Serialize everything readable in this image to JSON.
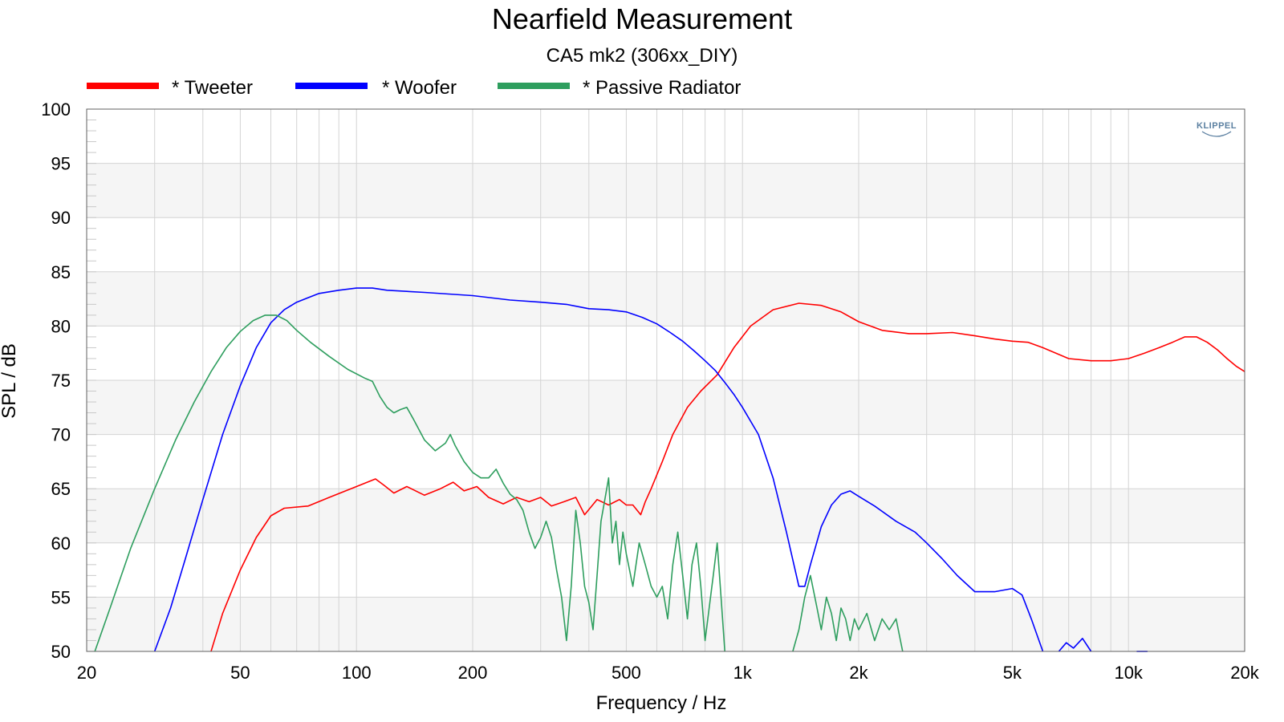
{
  "chart_data": {
    "type": "line",
    "title": "Nearfield Measurement",
    "subtitle": "CA5 mk2 (306xx_DIY)",
    "xlabel": "Frequency / Hz",
    "ylabel": "SPL / dB",
    "xscale": "log",
    "xlim": [
      20,
      20000
    ],
    "ylim": [
      50,
      100
    ],
    "legend_position": "top-left",
    "grid": true,
    "logo": "KLIPPEL",
    "x_ticks": [
      {
        "value": 20,
        "label": "20"
      },
      {
        "value": 50,
        "label": "50"
      },
      {
        "value": 100,
        "label": "100"
      },
      {
        "value": 200,
        "label": "200"
      },
      {
        "value": 500,
        "label": "500"
      },
      {
        "value": 1000,
        "label": "1k"
      },
      {
        "value": 2000,
        "label": "2k"
      },
      {
        "value": 5000,
        "label": "5k"
      },
      {
        "value": 10000,
        "label": "10k"
      },
      {
        "value": 20000,
        "label": "20k"
      }
    ],
    "y_ticks": [
      {
        "value": 50,
        "label": "50"
      },
      {
        "value": 55,
        "label": "55"
      },
      {
        "value": 60,
        "label": "60"
      },
      {
        "value": 65,
        "label": "65"
      },
      {
        "value": 70,
        "label": "70"
      },
      {
        "value": 75,
        "label": "75"
      },
      {
        "value": 80,
        "label": "80"
      },
      {
        "value": 85,
        "label": "85"
      },
      {
        "value": 90,
        "label": "90"
      },
      {
        "value": 95,
        "label": "95"
      },
      {
        "value": 100,
        "label": "100"
      }
    ],
    "series": [
      {
        "name": "* Tweeter",
        "color": "#ff0000",
        "points": [
          [
            42,
            50
          ],
          [
            45,
            53.5
          ],
          [
            50,
            57.5
          ],
          [
            55,
            60.5
          ],
          [
            60,
            62.5
          ],
          [
            65,
            63.2
          ],
          [
            75,
            63.4
          ],
          [
            85,
            64.2
          ],
          [
            100,
            65.2
          ],
          [
            112,
            65.9
          ],
          [
            118,
            65.3
          ],
          [
            125,
            64.6
          ],
          [
            135,
            65.2
          ],
          [
            150,
            64.4
          ],
          [
            165,
            65
          ],
          [
            178,
            65.6
          ],
          [
            190,
            64.8
          ],
          [
            205,
            65.2
          ],
          [
            220,
            64.2
          ],
          [
            240,
            63.6
          ],
          [
            260,
            64.2
          ],
          [
            280,
            63.8
          ],
          [
            300,
            64.2
          ],
          [
            320,
            63.4
          ],
          [
            345,
            63.8
          ],
          [
            370,
            64.2
          ],
          [
            390,
            62.6
          ],
          [
            420,
            64
          ],
          [
            450,
            63.5
          ],
          [
            480,
            64
          ],
          [
            500,
            63.5
          ],
          [
            520,
            63.5
          ],
          [
            545,
            62.6
          ],
          [
            560,
            63.8
          ],
          [
            580,
            65
          ],
          [
            620,
            67.5
          ],
          [
            660,
            70
          ],
          [
            720,
            72.5
          ],
          [
            780,
            74
          ],
          [
            860,
            75.5
          ],
          [
            950,
            78
          ],
          [
            1050,
            80
          ],
          [
            1200,
            81.5
          ],
          [
            1400,
            82.1
          ],
          [
            1600,
            81.9
          ],
          [
            1800,
            81.3
          ],
          [
            2000,
            80.4
          ],
          [
            2300,
            79.6
          ],
          [
            2700,
            79.3
          ],
          [
            3000,
            79.3
          ],
          [
            3500,
            79.4
          ],
          [
            4000,
            79.1
          ],
          [
            4500,
            78.8
          ],
          [
            5000,
            78.6
          ],
          [
            5500,
            78.5
          ],
          [
            6000,
            78
          ],
          [
            7000,
            77
          ],
          [
            8000,
            76.8
          ],
          [
            9000,
            76.8
          ],
          [
            10000,
            77
          ],
          [
            11000,
            77.5
          ],
          [
            12000,
            78
          ],
          [
            13000,
            78.5
          ],
          [
            14000,
            79
          ],
          [
            15000,
            79
          ],
          [
            16000,
            78.5
          ],
          [
            17000,
            77.8
          ],
          [
            18000,
            77
          ],
          [
            19000,
            76.3
          ],
          [
            20000,
            75.8
          ]
        ]
      },
      {
        "name": "* Woofer",
        "color": "#0000ff",
        "points": [
          [
            30,
            50
          ],
          [
            33,
            54
          ],
          [
            36,
            58.5
          ],
          [
            40,
            64
          ],
          [
            45,
            70
          ],
          [
            50,
            74.5
          ],
          [
            55,
            78
          ],
          [
            60,
            80.3
          ],
          [
            65,
            81.5
          ],
          [
            70,
            82.2
          ],
          [
            80,
            83
          ],
          [
            90,
            83.3
          ],
          [
            100,
            83.5
          ],
          [
            110,
            83.5
          ],
          [
            120,
            83.3
          ],
          [
            150,
            83.1
          ],
          [
            200,
            82.8
          ],
          [
            250,
            82.4
          ],
          [
            300,
            82.2
          ],
          [
            350,
            82
          ],
          [
            400,
            81.6
          ],
          [
            450,
            81.5
          ],
          [
            500,
            81.3
          ],
          [
            550,
            80.8
          ],
          [
            600,
            80.2
          ],
          [
            650,
            79.4
          ],
          [
            700,
            78.6
          ],
          [
            750,
            77.7
          ],
          [
            800,
            76.8
          ],
          [
            850,
            75.9
          ],
          [
            900,
            74.8
          ],
          [
            950,
            73.7
          ],
          [
            1000,
            72.5
          ],
          [
            1100,
            70
          ],
          [
            1200,
            66
          ],
          [
            1300,
            61
          ],
          [
            1400,
            56
          ],
          [
            1450,
            56
          ],
          [
            1500,
            58
          ],
          [
            1600,
            61.5
          ],
          [
            1700,
            63.5
          ],
          [
            1800,
            64.5
          ],
          [
            1900,
            64.8
          ],
          [
            2000,
            64.3
          ],
          [
            2200,
            63.4
          ],
          [
            2500,
            62
          ],
          [
            2800,
            61
          ],
          [
            3000,
            60
          ],
          [
            3300,
            58.5
          ],
          [
            3600,
            57
          ],
          [
            4000,
            55.5
          ],
          [
            4500,
            55.5
          ],
          [
            5000,
            55.8
          ],
          [
            5300,
            55.2
          ],
          [
            5600,
            53
          ],
          [
            6000,
            50
          ]
        ]
      },
      {
        "name": "* Woofer",
        "color": "#0000ff",
        "points": [
          [
            6600,
            50
          ],
          [
            6900,
            50.8
          ],
          [
            7200,
            50.3
          ],
          [
            7600,
            51.2
          ],
          [
            8000,
            50
          ]
        ]
      },
      {
        "name": "* Woofer",
        "color": "#0000ff",
        "points": [
          [
            10500,
            50
          ],
          [
            11200,
            50
          ]
        ]
      },
      {
        "name": "* Passive Radiator",
        "color": "#2e9e5e",
        "points": [
          [
            21,
            50
          ],
          [
            23,
            54
          ],
          [
            26,
            59.5
          ],
          [
            30,
            65
          ],
          [
            34,
            69.5
          ],
          [
            38,
            73
          ],
          [
            42,
            75.8
          ],
          [
            46,
            78
          ],
          [
            50,
            79.5
          ],
          [
            54,
            80.5
          ],
          [
            58,
            81
          ],
          [
            62,
            81
          ],
          [
            66,
            80.5
          ],
          [
            70,
            79.6
          ],
          [
            76,
            78.5
          ],
          [
            85,
            77.2
          ],
          [
            95,
            76
          ],
          [
            105,
            75.2
          ],
          [
            110,
            74.9
          ],
          [
            115,
            73.5
          ],
          [
            120,
            72.5
          ],
          [
            125,
            72
          ],
          [
            130,
            72.3
          ],
          [
            135,
            72.5
          ],
          [
            140,
            71.5
          ],
          [
            150,
            69.5
          ],
          [
            160,
            68.5
          ],
          [
            170,
            69.2
          ],
          [
            175,
            70
          ],
          [
            180,
            69
          ],
          [
            190,
            67.5
          ],
          [
            200,
            66.5
          ],
          [
            210,
            66
          ],
          [
            220,
            66
          ],
          [
            230,
            66.8
          ],
          [
            240,
            65.5
          ],
          [
            250,
            64.5
          ],
          [
            260,
            64
          ],
          [
            270,
            63
          ],
          [
            280,
            61
          ],
          [
            290,
            59.5
          ],
          [
            300,
            60.5
          ],
          [
            310,
            62
          ],
          [
            320,
            60.5
          ],
          [
            330,
            57.5
          ],
          [
            340,
            55
          ],
          [
            350,
            51
          ],
          [
            360,
            56
          ],
          [
            370,
            63
          ],
          [
            380,
            60
          ],
          [
            390,
            56
          ],
          [
            400,
            54.5
          ],
          [
            410,
            52
          ],
          [
            420,
            57
          ],
          [
            430,
            62
          ],
          [
            440,
            64
          ],
          [
            450,
            66
          ],
          [
            460,
            60
          ],
          [
            470,
            62
          ],
          [
            480,
            58
          ],
          [
            490,
            61
          ],
          [
            500,
            59
          ],
          [
            520,
            56
          ],
          [
            540,
            60
          ],
          [
            560,
            58
          ],
          [
            580,
            56
          ],
          [
            600,
            55
          ],
          [
            620,
            56
          ],
          [
            640,
            53
          ],
          [
            660,
            58
          ],
          [
            680,
            61
          ],
          [
            700,
            57
          ],
          [
            720,
            53
          ],
          [
            740,
            58
          ],
          [
            760,
            60
          ],
          [
            780,
            56
          ],
          [
            800,
            51
          ],
          [
            820,
            54
          ],
          [
            840,
            57
          ],
          [
            860,
            60
          ],
          [
            880,
            55
          ],
          [
            900,
            50
          ]
        ]
      },
      {
        "name": "* Passive Radiator",
        "color": "#2e9e5e",
        "points": [
          [
            1350,
            50
          ],
          [
            1400,
            52
          ],
          [
            1450,
            55
          ],
          [
            1500,
            57
          ],
          [
            1560,
            54
          ],
          [
            1600,
            52
          ],
          [
            1650,
            55
          ],
          [
            1700,
            53.5
          ],
          [
            1750,
            51
          ],
          [
            1800,
            54
          ],
          [
            1850,
            53
          ],
          [
            1900,
            51
          ],
          [
            1950,
            53
          ],
          [
            2000,
            52
          ],
          [
            2100,
            53.5
          ],
          [
            2200,
            51
          ],
          [
            2300,
            53
          ],
          [
            2400,
            52
          ],
          [
            2500,
            53
          ],
          [
            2600,
            50
          ]
        ]
      }
    ]
  }
}
